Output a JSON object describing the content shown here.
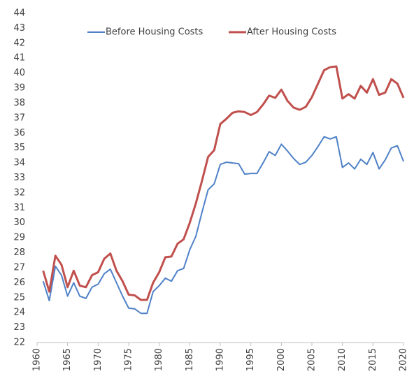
{
  "chart_data": {
    "type": "line",
    "x": [
      1961,
      1962,
      1963,
      1964,
      1965,
      1966,
      1967,
      1968,
      1969,
      1970,
      1971,
      1972,
      1973,
      1974,
      1975,
      1976,
      1977,
      1978,
      1979,
      1980,
      1981,
      1982,
      1983,
      1984,
      1985,
      1986,
      1987,
      1988,
      1989,
      1990,
      1991,
      1992,
      1993,
      1994,
      1995,
      1996,
      1997,
      1998,
      1999,
      2000,
      2001,
      2002,
      2003,
      2004,
      2005,
      2006,
      2007,
      2008,
      2009,
      2010,
      2011,
      2012,
      2013,
      2014,
      2015,
      2016,
      2017,
      2018,
      2019,
      2020
    ],
    "series": [
      {
        "name": "Before Housing Costs",
        "color": "#4f81c7",
        "values": [
          26.1,
          24.8,
          27.1,
          26.5,
          25.1,
          26.0,
          25.1,
          24.95,
          25.7,
          25.9,
          26.6,
          26.9,
          26.0,
          25.1,
          24.3,
          24.25,
          23.95,
          23.95,
          25.4,
          25.8,
          26.3,
          26.1,
          26.8,
          26.95,
          28.2,
          29.1,
          30.7,
          32.2,
          32.6,
          33.9,
          34.05,
          34.0,
          33.95,
          33.25,
          33.3,
          33.3,
          34.0,
          34.75,
          34.5,
          35.25,
          34.8,
          34.3,
          33.9,
          34.05,
          34.5,
          35.1,
          35.75,
          35.6,
          35.75,
          33.7,
          34.0,
          33.6,
          34.25,
          33.9,
          34.7,
          33.6,
          34.2,
          35.0,
          35.15,
          34.1
        ]
      },
      {
        "name": "After Housing Costs",
        "color": "#c0504d",
        "values": [
          26.8,
          25.4,
          27.8,
          27.2,
          25.7,
          26.8,
          25.8,
          25.7,
          26.5,
          26.7,
          27.6,
          27.95,
          26.8,
          26.1,
          25.2,
          25.15,
          24.85,
          24.85,
          26.0,
          26.7,
          27.7,
          27.75,
          28.6,
          28.9,
          30.0,
          31.3,
          32.8,
          34.4,
          34.85,
          36.6,
          36.95,
          37.35,
          37.45,
          37.4,
          37.2,
          37.4,
          37.9,
          38.5,
          38.35,
          38.9,
          38.15,
          37.7,
          37.55,
          37.75,
          38.4,
          39.3,
          40.2,
          40.4,
          40.45,
          38.3,
          38.6,
          38.3,
          39.15,
          38.7,
          39.6,
          38.55,
          38.7,
          39.6,
          39.3,
          38.35
        ]
      }
    ],
    "xlim": [
      1960,
      2020
    ],
    "xticks": [
      1960,
      1965,
      1970,
      1975,
      1980,
      1985,
      1990,
      1995,
      2000,
      2005,
      2010,
      2015,
      2020
    ],
    "ylim": [
      22,
      44
    ],
    "yticks": [
      22,
      23,
      24,
      25,
      26,
      27,
      28,
      29,
      30,
      31,
      32,
      33,
      34,
      35,
      36,
      37,
      38,
      39,
      40,
      41,
      42,
      43,
      44
    ],
    "grid": false,
    "legend": "top"
  }
}
